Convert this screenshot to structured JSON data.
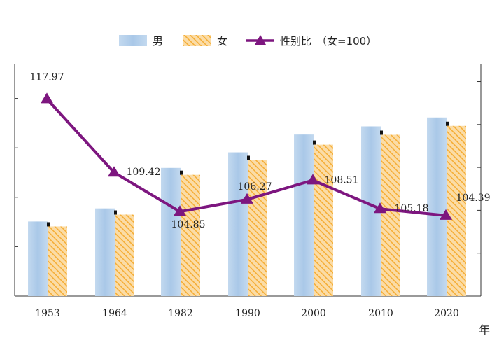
{
  "chart_data": {
    "type": "bar",
    "categories": [
      "1953",
      "1964",
      "1982",
      "1990",
      "2000",
      "2010",
      "2020"
    ],
    "series": [
      {
        "name": "男",
        "type": "bar",
        "values": [
          30.2,
          35.5,
          51.9,
          58.2,
          65.4,
          68.7,
          72.3
        ]
      },
      {
        "name": "女",
        "type": "bar",
        "values": [
          28.2,
          33.0,
          49.1,
          55.1,
          61.3,
          65.3,
          68.9
        ]
      },
      {
        "name": "性别比",
        "type": "line",
        "axis": "right",
        "values": [
          117.97,
          109.42,
          104.85,
          106.27,
          108.51,
          105.18,
          104.39
        ]
      }
    ],
    "line_labels": [
      "117.97",
      "109.42",
      "104.85",
      "106.27",
      "108.51",
      "105.18",
      "104.39"
    ],
    "legend": {
      "male": "男",
      "female": "女",
      "ratio": "性别比",
      "note": "（女=100）"
    },
    "left_axis": {
      "range": [
        0,
        80
      ],
      "tick_values": [
        20,
        40,
        60,
        80
      ]
    },
    "right_axis": {
      "range": [
        95,
        122
      ]
    },
    "x_unit_label": "年",
    "colors": {
      "male": "#aecbe9",
      "female": "#f7b23c",
      "female_hatch": "#fbdca6",
      "line": "#7d167f",
      "axis": "#333333"
    },
    "grid": false,
    "legend_position": "top"
  }
}
